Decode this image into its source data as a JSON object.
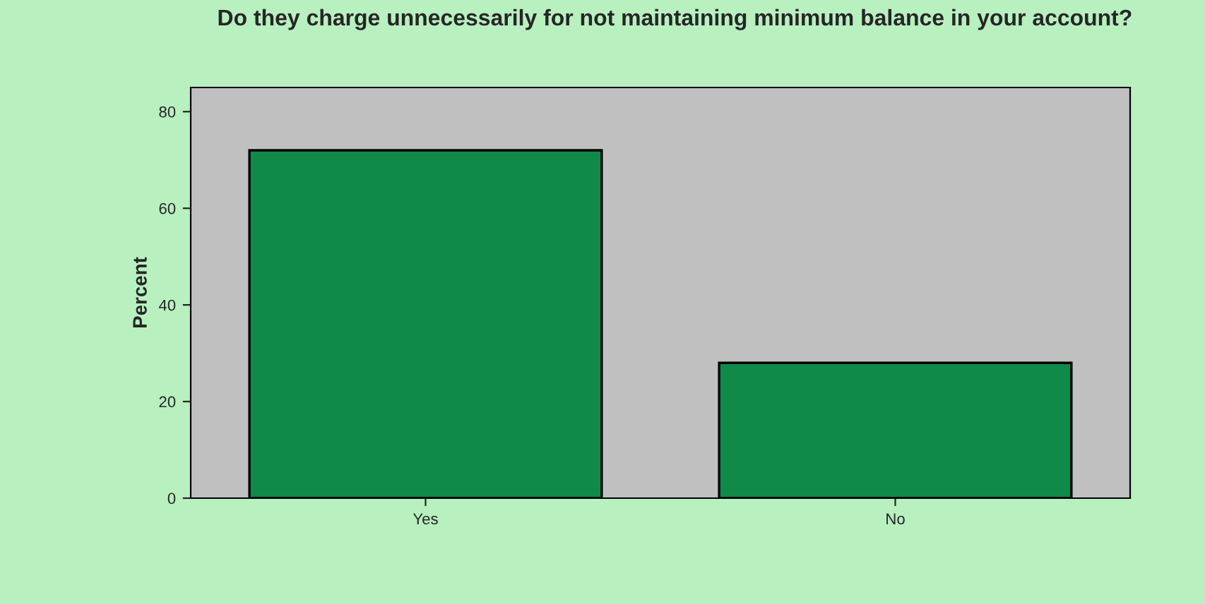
{
  "chart_data": {
    "type": "bar",
    "title": "Do they charge unnecessarily for not maintaining minimum balance in your account?",
    "ylabel": "Percent",
    "categories": [
      "Yes",
      "No"
    ],
    "values": [
      72,
      28
    ],
    "color": "#0f8a48",
    "ylim": [
      0,
      85
    ],
    "yticks": [
      0,
      20,
      40,
      60,
      80
    ],
    "grid": false
  }
}
